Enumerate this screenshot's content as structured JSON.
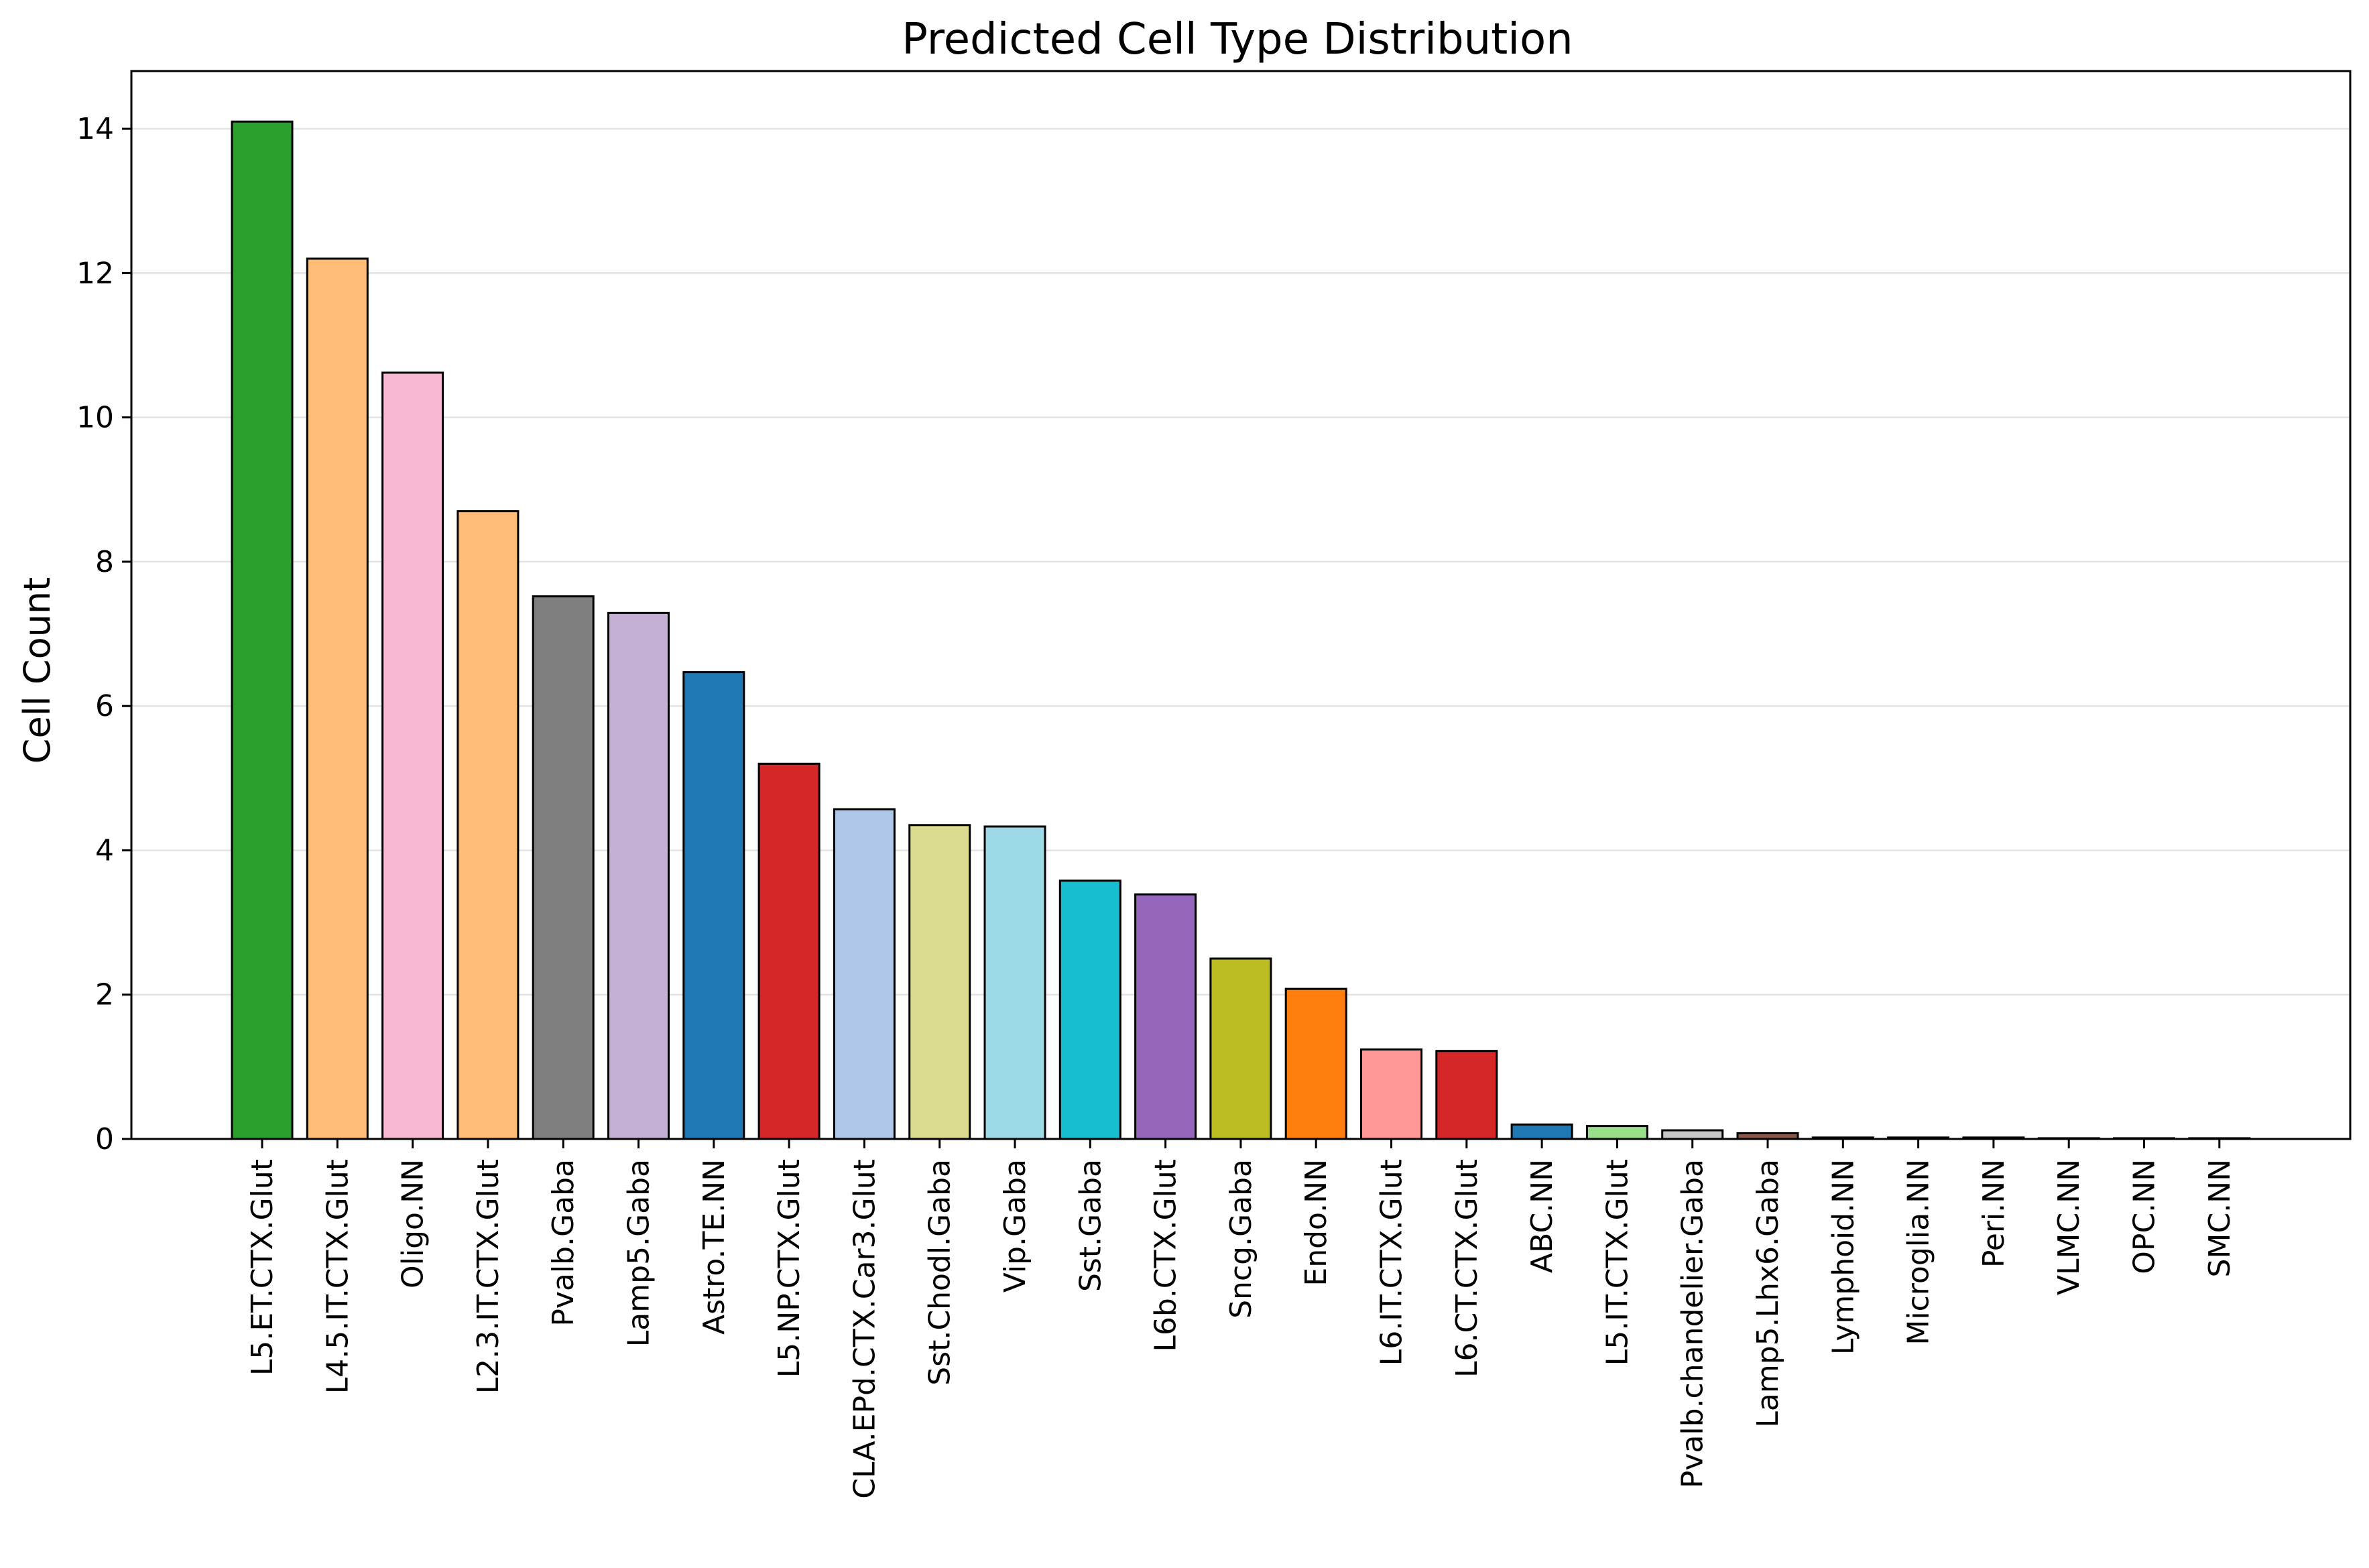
{
  "chart_data": {
    "type": "bar",
    "title": "Predicted Cell Type Distribution",
    "xlabel": "",
    "ylabel": "Cell Count",
    "ylim": [
      0,
      14.8
    ],
    "yticks": [
      "0",
      "2",
      "4",
      "6",
      "8",
      "10",
      "12",
      "14"
    ],
    "grid": "horizontal",
    "legend": "none",
    "categories": [
      "L5.ET.CTX.Glut",
      "L4.5.IT.CTX.Glut",
      "Oligo.NN",
      "L2.3.IT.CTX.Glut",
      "Pvalb.Gaba",
      "Lamp5.Gaba",
      "Astro.TE.NN",
      "L5.NP.CTX.Glut",
      "CLA.EPd.CTX.Car3.Glut",
      "Sst.Chodl.Gaba",
      "Vip.Gaba",
      "Sst.Gaba",
      "L6b.CTX.Glut",
      "Sncg.Gaba",
      "Endo.NN",
      "L6.IT.CTX.Glut",
      "L6.CT.CTX.Glut",
      "ABC.NN",
      "L5.IT.CTX.Glut",
      "Pvalb.chandelier.Gaba",
      "Lamp5.Lhx6.Gaba",
      "Lymphoid.NN",
      "Microglia.NN",
      "Peri.NN",
      "VLMC.NN",
      "OPC.NN",
      "SMC.NN"
    ],
    "values": [
      14.1,
      12.2,
      10.62,
      8.7,
      7.52,
      7.29,
      6.47,
      5.2,
      4.57,
      4.35,
      4.33,
      3.58,
      3.39,
      2.5,
      2.08,
      1.24,
      1.22,
      0.2,
      0.18,
      0.12,
      0.08,
      0.02,
      0.02,
      0.02,
      0.01,
      0.01,
      0.01
    ],
    "colors": [
      "#2ca02c",
      "#ffbb78",
      "#f7b6d2",
      "#ffbb78",
      "#7f7f7f",
      "#c5b0d5",
      "#1f77b4",
      "#d62728",
      "#aec7e8",
      "#dbdb8d",
      "#9edae5",
      "#17becf",
      "#9467bd",
      "#bcbd22",
      "#ff7f0e",
      "#ff9896",
      "#d62728",
      "#1f77b4",
      "#98df8a",
      "#c7c7c7",
      "#8c564b",
      "#c49c94",
      "#e377c2",
      "#bcbd22",
      "#17becf",
      "#2ca02c",
      "#ff7f0e"
    ],
    "edge_color": "#000000"
  }
}
